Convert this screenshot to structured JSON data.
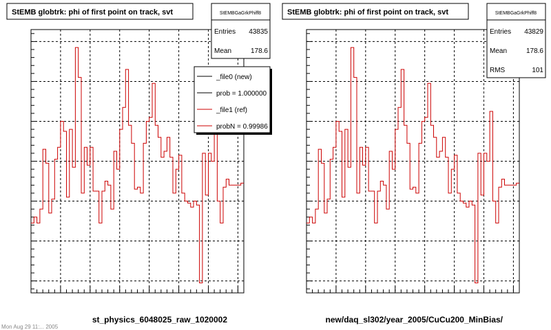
{
  "colors": {
    "ref": "#cc0000",
    "new": "#000000",
    "frame": "#000000",
    "grid": "#000000",
    "background": "#ffffff"
  },
  "footer_text": "Mon Aug 29 11:... 2005",
  "chart_data": [
    {
      "type": "line",
      "title": "StEMB globtrk: phi of first point on track, svt",
      "xlabel": "st_physics_6048025_raw_1020002",
      "ylabel": "",
      "xlim": [
        0,
        360
      ],
      "ylim": [
        370,
        1030
      ],
      "xticks": [
        0,
        50,
        100,
        150,
        200,
        250,
        300,
        350
      ],
      "yticks": [
        400,
        500,
        600,
        700,
        800,
        900,
        1000
      ],
      "grid": true,
      "stats": {
        "name": "StEMBGaGrkPhiff8",
        "rows": [
          {
            "label": "Entries",
            "value": "43835"
          },
          {
            "label": "Mean",
            "value": "178.6"
          }
        ]
      },
      "legend": {
        "placement": "top-right",
        "entries": [
          {
            "label": "_file0 (new)",
            "color": "#000000"
          },
          {
            "label": "prob = 1.000000",
            "color": "#000000"
          },
          {
            "label": "_file1 (ref)",
            "color": "#cc0000"
          },
          {
            "label": "probN = 0.99986",
            "color": "#cc0000"
          }
        ]
      },
      "series": [
        {
          "bin_width": 5,
          "values": [
            545,
            560,
            545,
            580,
            730,
            695,
            570,
            605,
            705,
            735,
            800,
            775,
            610,
            780,
            685,
            985,
            910,
            620,
            735,
            690,
            735,
            625,
            625,
            545,
            625,
            650,
            640,
            580,
            725,
            680,
            780,
            835,
            930,
            790,
            745,
            630,
            635,
            620,
            745,
            800,
            810,
            895,
            790,
            760,
            710,
            725,
            760,
            710,
            620,
            680,
            715,
            620,
            600,
            595,
            585,
            600,
            590,
            395,
            720,
            615,
            720,
            700,
            825,
            600,
            545,
            635,
            655,
            640,
            640,
            640,
            640,
            645
          ]
        }
      ]
    },
    {
      "type": "line",
      "title": "StEMB globtrk: phi of first point on track, svt",
      "xlabel": "new/daq_sl302/year_2005/CuCu200_MinBias/",
      "ylabel": "",
      "xlim": [
        0,
        360
      ],
      "ylim": [
        370,
        1030
      ],
      "xticks": [
        0,
        50,
        100,
        150,
        200,
        250,
        300,
        350
      ],
      "yticks": [
        400,
        500,
        600,
        700,
        800,
        900,
        1000
      ],
      "grid": true,
      "stats": {
        "name": "StEMBGaGrkPhiff8",
        "rows": [
          {
            "label": "Entries",
            "value": "43829"
          },
          {
            "label": "Mean",
            "value": "178.6"
          },
          {
            "label": "RMS",
            "value": "101"
          }
        ]
      },
      "legend": null,
      "series": [
        {
          "bin_width": 5,
          "values": [
            545,
            560,
            545,
            580,
            730,
            695,
            570,
            605,
            705,
            735,
            800,
            775,
            610,
            780,
            685,
            985,
            910,
            620,
            735,
            690,
            735,
            625,
            625,
            545,
            625,
            650,
            640,
            580,
            725,
            680,
            780,
            835,
            930,
            790,
            745,
            630,
            635,
            620,
            745,
            800,
            810,
            895,
            790,
            760,
            710,
            725,
            760,
            710,
            620,
            680,
            715,
            620,
            600,
            595,
            585,
            600,
            590,
            395,
            720,
            615,
            720,
            700,
            825,
            600,
            545,
            635,
            655,
            640,
            640,
            640,
            640,
            645
          ]
        }
      ]
    }
  ]
}
